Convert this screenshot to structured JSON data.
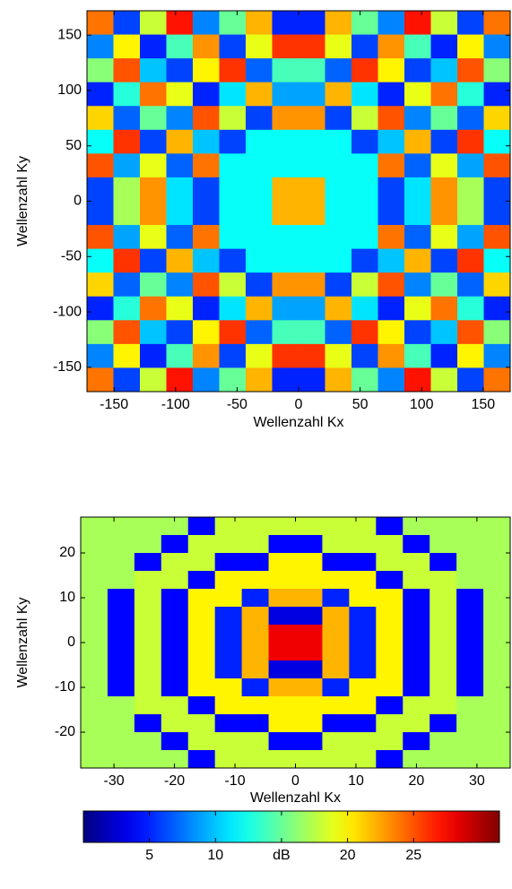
{
  "chart_data": [
    {
      "type": "heatmap",
      "xlabel": "Wellenzahl Kx",
      "ylabel": "Wellenzahl Ky",
      "xlim": [
        -172,
        172
      ],
      "ylim": [
        -172,
        172
      ],
      "xticks": [
        -150,
        -100,
        -50,
        0,
        50,
        100,
        150
      ],
      "yticks": [
        -150,
        -100,
        -50,
        0,
        50,
        100,
        150
      ],
      "z": [
        [
          24,
          6,
          18,
          27,
          8,
          15,
          22,
          5,
          5,
          22,
          15,
          8,
          27,
          18,
          6,
          24
        ],
        [
          8,
          20,
          5,
          14,
          23,
          6,
          19,
          26,
          26,
          19,
          6,
          23,
          14,
          5,
          20,
          8
        ],
        [
          16,
          25,
          10,
          6,
          20,
          26,
          7,
          14,
          14,
          7,
          26,
          20,
          6,
          10,
          25,
          16
        ],
        [
          5,
          13,
          24,
          19,
          5,
          11,
          22,
          9,
          9,
          22,
          11,
          5,
          19,
          24,
          13,
          5
        ],
        [
          21,
          7,
          15,
          8,
          25,
          18,
          6,
          23,
          23,
          6,
          18,
          25,
          8,
          15,
          7,
          21
        ],
        [
          12,
          26,
          6,
          22,
          10,
          6,
          12,
          12,
          12,
          12,
          6,
          10,
          22,
          6,
          26,
          12
        ],
        [
          25,
          9,
          19,
          7,
          24,
          12,
          12,
          12,
          12,
          12,
          12,
          24,
          7,
          19,
          9,
          25
        ],
        [
          6,
          17,
          23,
          11,
          6,
          12,
          12,
          22,
          22,
          12,
          12,
          6,
          11,
          23,
          17,
          6
        ],
        [
          6,
          17,
          23,
          11,
          6,
          12,
          12,
          22,
          22,
          12,
          12,
          6,
          11,
          23,
          17,
          6
        ],
        [
          25,
          9,
          19,
          7,
          24,
          12,
          12,
          12,
          12,
          12,
          12,
          24,
          7,
          19,
          9,
          25
        ],
        [
          12,
          26,
          6,
          22,
          10,
          6,
          12,
          12,
          12,
          12,
          6,
          10,
          22,
          6,
          26,
          12
        ],
        [
          21,
          7,
          15,
          8,
          25,
          18,
          6,
          23,
          23,
          6,
          18,
          25,
          8,
          15,
          7,
          21
        ],
        [
          5,
          13,
          24,
          19,
          5,
          11,
          22,
          9,
          9,
          22,
          11,
          5,
          19,
          24,
          13,
          5
        ],
        [
          16,
          25,
          10,
          6,
          20,
          26,
          7,
          14,
          14,
          7,
          26,
          20,
          6,
          10,
          25,
          16
        ],
        [
          8,
          20,
          5,
          14,
          23,
          6,
          19,
          26,
          26,
          19,
          6,
          23,
          14,
          5,
          20,
          8
        ],
        [
          24,
          6,
          18,
          27,
          8,
          15,
          22,
          5,
          5,
          22,
          15,
          8,
          27,
          18,
          6,
          24
        ]
      ]
    },
    {
      "type": "heatmap",
      "xlabel": "Wellenzahl Kx",
      "ylabel": "Wellenzahl Ky",
      "xlim": [
        -35.5,
        35.5
      ],
      "ylim": [
        -28,
        28
      ],
      "xticks": [
        -30,
        -20,
        -10,
        0,
        10,
        20,
        30
      ],
      "yticks": [
        -20,
        -10,
        0,
        10,
        20
      ],
      "z": [
        [
          17,
          17,
          17,
          17,
          4,
          18,
          18,
          18,
          18,
          18,
          18,
          4,
          17,
          17,
          17,
          17
        ],
        [
          17,
          17,
          17,
          4,
          18,
          18,
          18,
          4,
          4,
          18,
          18,
          18,
          4,
          17,
          17,
          17
        ],
        [
          17,
          17,
          4,
          18,
          18,
          4,
          4,
          20,
          20,
          4,
          4,
          18,
          18,
          4,
          17,
          17
        ],
        [
          17,
          17,
          18,
          18,
          4,
          20,
          20,
          20,
          20,
          20,
          20,
          4,
          18,
          18,
          17,
          17
        ],
        [
          17,
          4,
          18,
          4,
          20,
          20,
          5,
          22,
          22,
          5,
          20,
          20,
          4,
          18,
          4,
          17
        ],
        [
          17,
          4,
          18,
          4,
          20,
          5,
          22,
          3,
          3,
          22,
          5,
          20,
          4,
          18,
          4,
          17
        ],
        [
          17,
          4,
          18,
          4,
          20,
          5,
          22,
          28,
          28,
          22,
          5,
          20,
          4,
          18,
          4,
          17
        ],
        [
          17,
          4,
          18,
          4,
          20,
          5,
          22,
          28,
          28,
          22,
          5,
          20,
          4,
          18,
          4,
          17
        ],
        [
          17,
          4,
          18,
          4,
          20,
          5,
          22,
          3,
          3,
          22,
          5,
          20,
          4,
          18,
          4,
          17
        ],
        [
          17,
          4,
          18,
          4,
          20,
          20,
          5,
          22,
          22,
          5,
          20,
          20,
          4,
          18,
          4,
          17
        ],
        [
          17,
          17,
          18,
          18,
          4,
          20,
          20,
          20,
          20,
          20,
          20,
          4,
          18,
          18,
          17,
          17
        ],
        [
          17,
          17,
          4,
          18,
          18,
          4,
          4,
          20,
          20,
          4,
          4,
          18,
          18,
          4,
          17,
          17
        ],
        [
          17,
          17,
          17,
          4,
          18,
          18,
          18,
          4,
          4,
          18,
          18,
          18,
          4,
          17,
          17,
          17
        ],
        [
          17,
          17,
          17,
          17,
          4,
          18,
          18,
          18,
          18,
          18,
          18,
          4,
          17,
          17,
          17,
          17
        ]
      ]
    },
    {
      "type": "colorbar",
      "colormap": "jet",
      "clim": [
        0,
        31.5
      ],
      "ticks": [
        5,
        10,
        {
          "value": 15,
          "label": "dB"
        },
        20,
        25
      ]
    }
  ]
}
